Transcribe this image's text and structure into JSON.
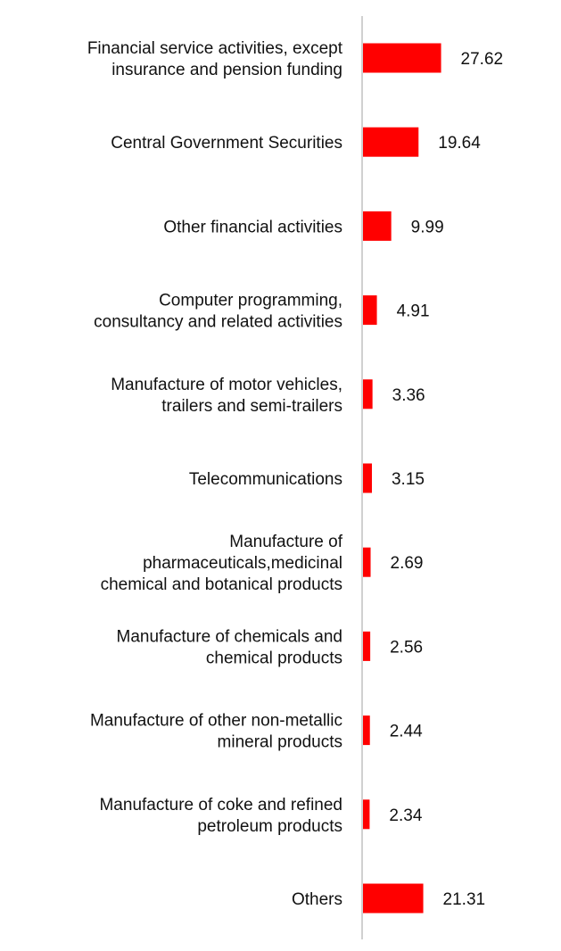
{
  "chart_data": {
    "type": "bar",
    "orientation": "horizontal",
    "categories": [
      [
        "Financial service activities, except",
        "insurance and pension funding"
      ],
      [
        "Central Government Securities"
      ],
      [
        "Other financial activities"
      ],
      [
        "Computer programming,",
        "consultancy and related activities"
      ],
      [
        "Manufacture of motor vehicles,",
        "trailers and semi-trailers"
      ],
      [
        "Telecommunications"
      ],
      [
        "Manufacture of",
        "pharmaceuticals,medicinal",
        "chemical and botanical products"
      ],
      [
        "Manufacture of chemicals and",
        "chemical products"
      ],
      [
        "Manufacture of other non-metallic",
        "mineral products"
      ],
      [
        "Manufacture of coke and refined",
        "petroleum products"
      ],
      [
        "Others"
      ]
    ],
    "values": [
      27.62,
      19.64,
      9.99,
      4.91,
      3.36,
      3.15,
      2.69,
      2.56,
      2.44,
      2.34,
      21.31
    ],
    "value_labels": [
      "27.62",
      "19.64",
      "9.99",
      "4.91",
      "3.36",
      "3.15",
      "2.69",
      "2.56",
      "2.44",
      "2.34",
      "21.31"
    ],
    "bar_color": "#ff0000",
    "axis_color": "#d0d0d0",
    "grid": false,
    "legend": "none"
  }
}
